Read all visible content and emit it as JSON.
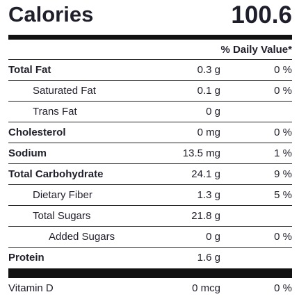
{
  "header": {
    "calories_label": "Calories",
    "calories_value": "100.6"
  },
  "daily_value_header": "% Daily Value*",
  "rows": [
    {
      "label": "Total Fat",
      "amount": "0.3 g",
      "pct": "0 %"
    },
    {
      "label": "Saturated Fat",
      "amount": "0.1 g",
      "pct": "0 %"
    },
    {
      "label": "Trans Fat",
      "amount": "0 g",
      "pct": ""
    },
    {
      "label": "Cholesterol",
      "amount": "0 mg",
      "pct": "0 %"
    },
    {
      "label": "Sodium",
      "amount": "13.5 mg",
      "pct": "1 %"
    },
    {
      "label": "Total Carbohydrate",
      "amount": "24.1 g",
      "pct": "9 %"
    },
    {
      "label": "Dietary Fiber",
      "amount": "1.3 g",
      "pct": "5 %"
    },
    {
      "label": "Total Sugars",
      "amount": "21.8 g",
      "pct": ""
    },
    {
      "label": "Added Sugars",
      "amount": "0 g",
      "pct": "0 %"
    },
    {
      "label": "Protein",
      "amount": "1.6 g",
      "pct": ""
    }
  ],
  "vitamins": [
    {
      "label": "Vitamin D",
      "amount": "0 mcg",
      "pct": "0 %"
    }
  ]
}
